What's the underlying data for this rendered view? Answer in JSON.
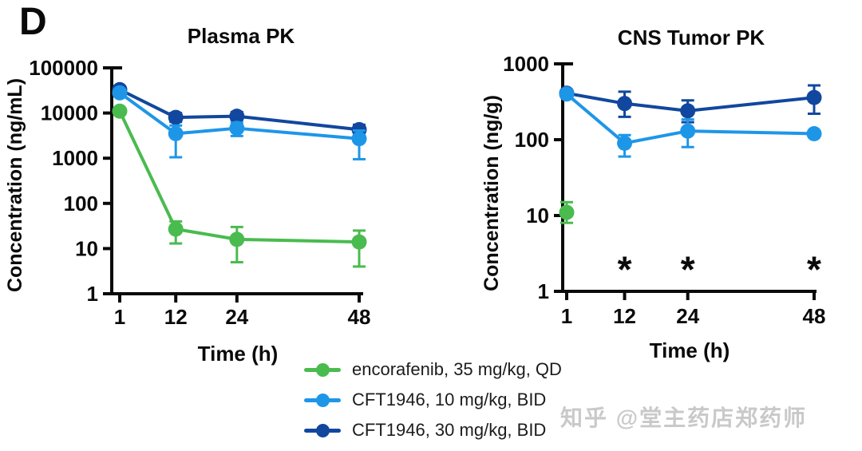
{
  "panel_label": "D",
  "watermark": "知乎 @堂主药店郑药师",
  "colors": {
    "encorafenib_green": "#4abb4f",
    "cft1946_10_light_blue": "#1e96e8",
    "cft1946_30_dark_blue": "#11479e",
    "asterisk_green": "#55c95c",
    "axis_black": "#0a0a0a"
  },
  "legend": {
    "items": [
      {
        "label": "encorafenib, 35 mg/kg, QD",
        "color": "#4abb4f"
      },
      {
        "label": "CFT1946, 10 mg/kg, BID",
        "color": "#1e96e8"
      },
      {
        "label": "CFT1946, 30 mg/kg, BID",
        "color": "#11479e"
      }
    ]
  },
  "chart_data": [
    {
      "type": "line",
      "title": "Plasma PK",
      "xlabel": "Time (h)",
      "ylabel": "Concentration (ng/mL)",
      "y_scale": "log",
      "ylim": [
        1,
        100000
      ],
      "xlim": [
        1,
        48
      ],
      "x_ticks": [
        1,
        12,
        24,
        48
      ],
      "y_ticks": [
        100000,
        10000,
        1000,
        100,
        10,
        1
      ],
      "grid": false,
      "series": [
        {
          "name": "encorafenib, 35 mg/kg, QD",
          "color": "#4abb4f",
          "x": [
            1,
            12,
            24,
            48
          ],
          "y": [
            11000,
            27,
            16,
            14
          ],
          "y_err_low": [
            9500,
            13,
            5,
            4
          ],
          "y_err_high": [
            12500,
            40,
            30,
            25
          ]
        },
        {
          "name": "CFT1946, 10 mg/kg, BID",
          "color": "#1e96e8",
          "x": [
            1,
            12,
            24,
            48
          ],
          "y": [
            28000,
            3500,
            4600,
            2700
          ],
          "y_err_low": [
            24000,
            1050,
            3100,
            950
          ],
          "y_err_high": [
            33000,
            5300,
            6100,
            4100
          ]
        },
        {
          "name": "CFT1946, 30 mg/kg, BID",
          "color": "#11479e",
          "x": [
            1,
            12,
            24,
            48
          ],
          "y": [
            33000,
            8000,
            8500,
            4300
          ],
          "y_err_low": [
            28000,
            6400,
            7000,
            3400
          ],
          "y_err_high": [
            39000,
            10000,
            10500,
            5500
          ]
        }
      ],
      "annotations": []
    },
    {
      "type": "line",
      "title": "CNS Tumor PK",
      "xlabel": "Time (h)",
      "ylabel": "Concentration (ng/g)",
      "y_scale": "log",
      "ylim": [
        1,
        1000
      ],
      "xlim": [
        1,
        48
      ],
      "x_ticks": [
        1,
        12,
        24,
        48
      ],
      "y_ticks": [
        1000,
        100,
        10,
        1
      ],
      "grid": false,
      "series": [
        {
          "name": "encorafenib, 35 mg/kg, QD",
          "color": "#4abb4f",
          "x": [
            1
          ],
          "y": [
            11
          ],
          "y_err_low": [
            8
          ],
          "y_err_high": [
            15
          ]
        },
        {
          "name": "CFT1946, 10 mg/kg, BID",
          "color": "#1e96e8",
          "x": [
            1,
            12,
            24,
            48
          ],
          "y": [
            400,
            90,
            130,
            120
          ],
          "y_err_low": [
            360,
            60,
            80,
            120
          ],
          "y_err_high": [
            440,
            115,
            185,
            120
          ]
        },
        {
          "name": "CFT1946, 30 mg/kg, BID",
          "color": "#11479e",
          "x": [
            1,
            12,
            24,
            48
          ],
          "y": [
            410,
            300,
            240,
            360
          ],
          "y_err_low": [
            390,
            200,
            170,
            220
          ],
          "y_err_high": [
            430,
            430,
            330,
            520
          ]
        }
      ],
      "annotations": [
        {
          "text": "*",
          "x": 12,
          "y": 2,
          "color": "#55c95c"
        },
        {
          "text": "*",
          "x": 24,
          "y": 2,
          "color": "#55c95c"
        },
        {
          "text": "*",
          "x": 48,
          "y": 2,
          "color": "#55c95c"
        }
      ]
    }
  ]
}
